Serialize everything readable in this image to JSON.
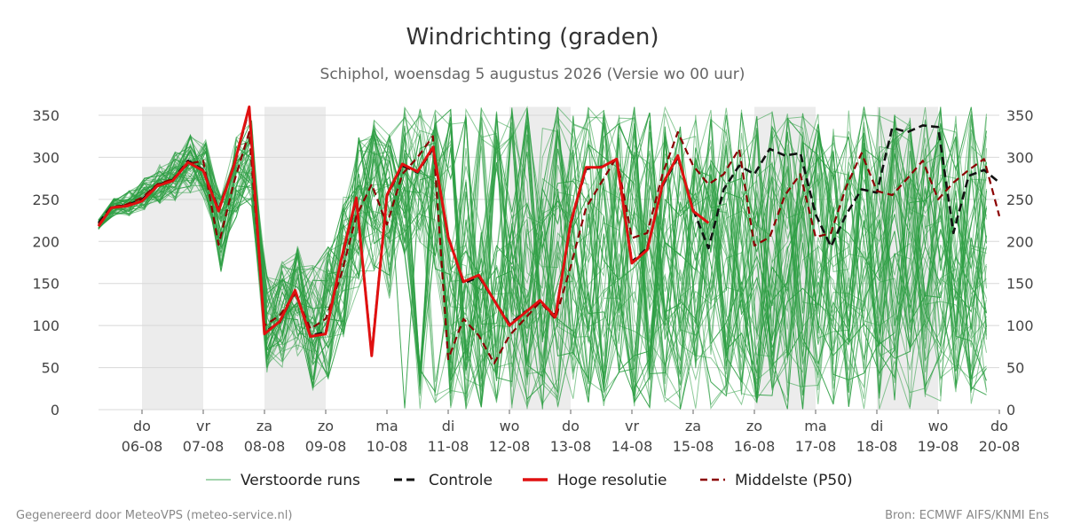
{
  "title": "Windrichting (graden)",
  "subtitle": "Schiphol, woensdag  5 augustus 2026 (Versie wo 00 uur)",
  "footer_left": "Gegenereerd door MeteoVPS (meteo-service.nl)",
  "footer_right": "Bron: ECMWF AIFS/KNMI Ens",
  "colors": {
    "ensemble": "#2e9e44",
    "control": "#111111",
    "hires": "#e01010",
    "median": "#8b0000",
    "band": "#ececec",
    "grid": "#d8d8d8"
  },
  "chart_data": {
    "type": "line",
    "ylim": [
      0,
      360
    ],
    "yticks": [
      0,
      50,
      100,
      150,
      200,
      250,
      300,
      350
    ],
    "xlim": [
      -0.71,
      14
    ],
    "xticks": [
      {
        "day": "do",
        "date": "06-08"
      },
      {
        "day": "vr",
        "date": "07-08"
      },
      {
        "day": "za",
        "date": "08-08"
      },
      {
        "day": "zo",
        "date": "09-08"
      },
      {
        "day": "ma",
        "date": "10-08"
      },
      {
        "day": "di",
        "date": "11-08"
      },
      {
        "day": "wo",
        "date": "12-08"
      },
      {
        "day": "do",
        "date": "13-08"
      },
      {
        "day": "vr",
        "date": "14-08"
      },
      {
        "day": "za",
        "date": "15-08"
      },
      {
        "day": "zo",
        "date": "16-08"
      },
      {
        "day": "ma",
        "date": "17-08"
      },
      {
        "day": "di",
        "date": "18-08"
      },
      {
        "day": "wo",
        "date": "19-08"
      },
      {
        "day": "do",
        "date": "20-08"
      }
    ],
    "shaded_days": [
      [
        0,
        1
      ],
      [
        2,
        3
      ],
      [
        6,
        7
      ],
      [
        10,
        11
      ],
      [
        12,
        13
      ]
    ],
    "legend": [
      "Verstoorde runs",
      "Controle",
      "Hoge resolutie",
      "Middelste (P50)"
    ],
    "series": [
      {
        "name": "Hoge resolutie",
        "x": [
          -0.71,
          -0.5,
          -0.25,
          0,
          0.25,
          0.5,
          0.75,
          1,
          1.25,
          1.5,
          1.75,
          2,
          2.25,
          2.5,
          2.75,
          3,
          3.25,
          3.5,
          3.75,
          4,
          4.25,
          4.5,
          4.75,
          5,
          5.25,
          5.5,
          6,
          6.25,
          6.5,
          6.75,
          7,
          7.25,
          7.5,
          7.75,
          8,
          8.25,
          8.5,
          8.75,
          9,
          9.25
        ],
        "values": [
          218,
          240,
          242,
          248,
          266,
          272,
          294,
          284,
          236,
          290,
          360,
          90,
          105,
          142,
          87,
          90,
          178,
          252,
          64,
          255,
          292,
          283,
          312,
          205,
          152,
          160,
          100,
          115,
          130,
          110,
          222,
          288,
          288,
          298,
          174,
          190,
          268,
          302,
          236,
          222
        ]
      },
      {
        "name": "Controle",
        "x": [
          -0.71,
          -0.5,
          -0.25,
          0,
          0.25,
          0.5,
          0.75,
          1,
          1.25,
          1.5,
          1.75,
          2,
          2.25,
          2.5,
          2.75,
          3,
          3.25,
          3.5,
          3.75,
          4,
          4.25,
          4.5,
          4.75,
          5,
          5.25,
          5.5,
          6,
          6.25,
          6.5,
          6.75,
          7,
          7.25,
          7.5,
          7.75,
          8,
          8.25,
          8.5,
          8.75,
          9,
          9.25,
          9.5,
          9.75,
          10,
          10.25,
          10.5,
          10.75,
          11,
          11.25,
          11.5,
          11.75,
          12,
          12.25,
          12.5,
          12.75,
          13,
          13.25,
          13.5,
          13.75,
          14
        ],
        "values": [
          222,
          241,
          243,
          250,
          267,
          273,
          296,
          285,
          238,
          289,
          358,
          92,
          104,
          141,
          88,
          92,
          176,
          250,
          66,
          254,
          290,
          282,
          310,
          206,
          150,
          158,
          102,
          116,
          128,
          112,
          220,
          286,
          289,
          297,
          176,
          192,
          266,
          300,
          238,
          192,
          262,
          290,
          280,
          310,
          302,
          305,
          232,
          194,
          232,
          262,
          258,
          335,
          330,
          338,
          336,
          210,
          278,
          285,
          270
        ]
      },
      {
        "name": "Middelste (P50)",
        "x": [
          -0.71,
          -0.5,
          -0.25,
          0,
          0.25,
          0.5,
          0.75,
          1,
          1.25,
          1.5,
          1.75,
          2,
          2.25,
          2.5,
          2.75,
          3,
          3.25,
          3.5,
          3.75,
          4,
          4.25,
          4.5,
          4.75,
          5,
          5.25,
          5.5,
          5.75,
          6,
          6.25,
          6.5,
          6.75,
          7,
          7.25,
          7.5,
          7.75,
          8,
          8.25,
          8.5,
          8.75,
          9,
          9.25,
          9.5,
          9.75,
          10,
          10.25,
          10.5,
          10.75,
          11,
          11.25,
          11.5,
          11.75,
          12,
          12.25,
          12.5,
          12.75,
          13,
          13.25,
          13.5,
          13.75,
          14
        ],
        "values": [
          220,
          240,
          244,
          252,
          268,
          274,
          292,
          296,
          196,
          270,
          330,
          100,
          112,
          138,
          96,
          108,
          160,
          230,
          268,
          220,
          280,
          300,
          325,
          60,
          108,
          88,
          55,
          88,
          108,
          128,
          108,
          170,
          240,
          270,
          300,
          204,
          210,
          280,
          330,
          290,
          268,
          280,
          310,
          195,
          205,
          255,
          280,
          205,
          210,
          265,
          305,
          260,
          255,
          275,
          296,
          250,
          270,
          285,
          298,
          230
        ]
      }
    ]
  }
}
